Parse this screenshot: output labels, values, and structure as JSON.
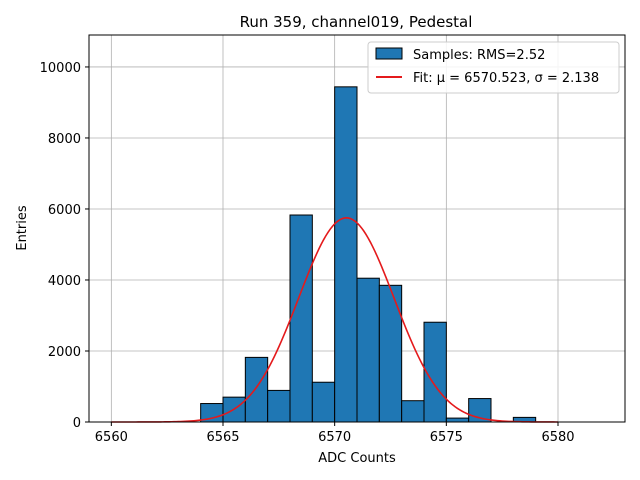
{
  "chart_data": {
    "type": "bar",
    "title": "Run 359, channel019, Pedestal",
    "xlabel": "ADC Counts",
    "ylabel": "Entries",
    "xlim": [
      6559,
      6583
    ],
    "ylim": [
      0,
      10900
    ],
    "grid": true,
    "x_ticks": [
      6560,
      6565,
      6570,
      6575,
      6580
    ],
    "y_ticks": [
      0,
      2000,
      4000,
      6000,
      8000,
      10000
    ],
    "bar_color": "#1f77b4",
    "bins": [
      {
        "left": 6564,
        "right": 6565,
        "count": 520
      },
      {
        "left": 6565,
        "right": 6566,
        "count": 700
      },
      {
        "left": 6566,
        "right": 6567,
        "count": 1820
      },
      {
        "left": 6567,
        "right": 6568,
        "count": 890
      },
      {
        "left": 6568,
        "right": 6569,
        "count": 5830
      },
      {
        "left": 6569,
        "right": 6570,
        "count": 1120
      },
      {
        "left": 6570,
        "right": 6571,
        "count": 9440
      },
      {
        "left": 6571,
        "right": 6572,
        "count": 4050
      },
      {
        "left": 6572,
        "right": 6573,
        "count": 3850
      },
      {
        "left": 6573,
        "right": 6574,
        "count": 600
      },
      {
        "left": 6574,
        "right": 6575,
        "count": 2810
      },
      {
        "left": 6575,
        "right": 6576,
        "count": 110
      },
      {
        "left": 6576,
        "right": 6577,
        "count": 660
      },
      {
        "left": 6578,
        "right": 6579,
        "count": 130
      }
    ],
    "fit": {
      "mu": 6570.523,
      "sigma": 2.138,
      "peak": 5750,
      "x_range": [
        6560,
        6580
      ],
      "color": "#e41a1c"
    },
    "legend": {
      "placement": "top-right",
      "entries": [
        {
          "label": "Samples: RMS=2.52",
          "kind": "patch"
        },
        {
          "label": "Fit: μ = 6570.523, σ = 2.138",
          "kind": "line"
        }
      ]
    }
  }
}
